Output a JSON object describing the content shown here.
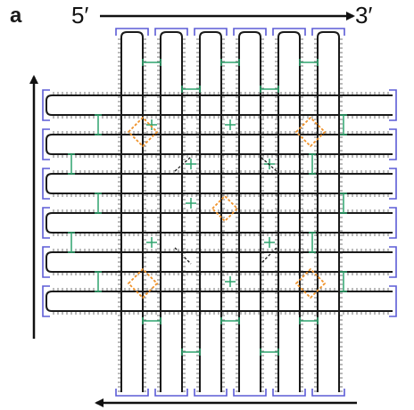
{
  "figure": {
    "panel_label": "a",
    "strand_start_label": "5′",
    "strand_end_label": "3′"
  },
  "colors": {
    "scaffold": "#1a1a1a",
    "edge_staples": "#5b5bd6",
    "core_staples": "#2fa46e",
    "junction_staples": "#f0932b",
    "crossover_dashes": "#1a1a1a"
  },
  "arrows": {
    "top": "right",
    "left": "up",
    "bottom": "left"
  }
}
